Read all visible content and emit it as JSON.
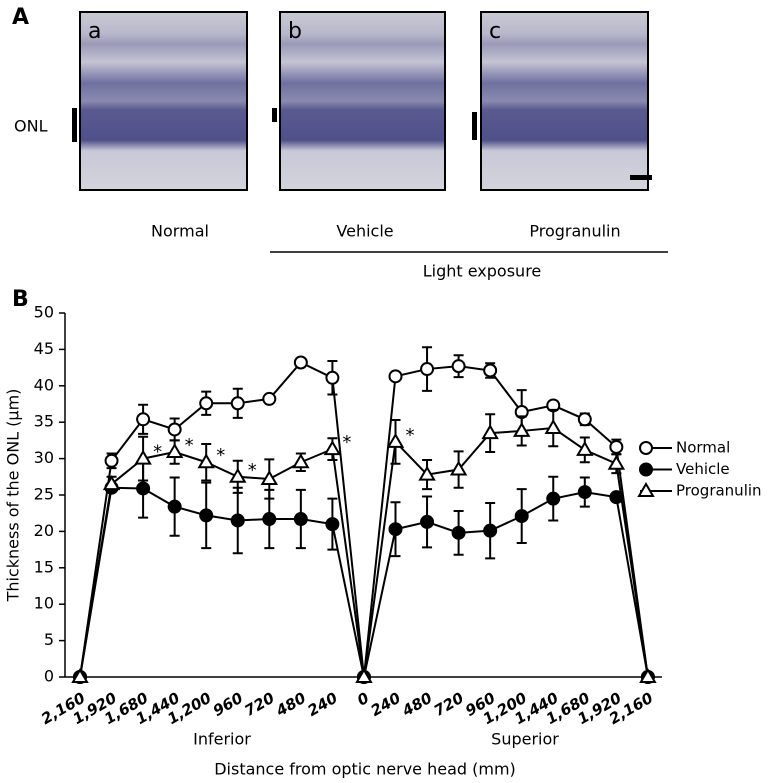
{
  "panel_a": {
    "label": "A",
    "images": [
      {
        "label": "a"
      },
      {
        "label": "b"
      },
      {
        "label": "c"
      }
    ],
    "layer_label": "ONL",
    "groups": [
      "Normal",
      "Vehicle",
      "Progranulin"
    ],
    "condition": "Light exposure"
  },
  "chart_data": {
    "type": "line",
    "panel_label": "B",
    "y_label": "Thickness of the ONL (µm)",
    "x_label": "Distance from optic nerve head (mm)",
    "regions": [
      "Inferior",
      "Superior"
    ],
    "categories": [
      "2,160",
      "1,920",
      "1,680",
      "1,440",
      "1,200",
      "960",
      "720",
      "480",
      "240",
      "0",
      "240",
      "480",
      "720",
      "960",
      "1,200",
      "1,440",
      "1,680",
      "1,920",
      "2,160"
    ],
    "ylim": [
      0,
      50
    ],
    "yticks": [
      0,
      5,
      10,
      15,
      20,
      25,
      30,
      35,
      40,
      45,
      50
    ],
    "series": [
      {
        "name": "Normal",
        "color": "#000000",
        "marker": "open-circle",
        "values": [
          0,
          29.7,
          35.4,
          34,
          37.6,
          37.6,
          38.2,
          43.2,
          41.1,
          0,
          41.3,
          42.3,
          42.7,
          42.1,
          36.4,
          37.3,
          35.4,
          31.6,
          0
        ],
        "errors": [
          0,
          1,
          2,
          1.5,
          1.6,
          2,
          0,
          0.5,
          2.3,
          0,
          0.5,
          3,
          1.5,
          1,
          3,
          0.5,
          0.8,
          1,
          0
        ]
      },
      {
        "name": "Vehicle",
        "color": "#000000",
        "marker": "filled-circle",
        "values": [
          0,
          26,
          25.9,
          23.4,
          22.2,
          21.5,
          21.7,
          21.7,
          21,
          0,
          20.3,
          21.3,
          19.8,
          20.1,
          22.1,
          24.5,
          25.4,
          24.7,
          0
        ],
        "errors": [
          0,
          0.5,
          4,
          4,
          4.5,
          4.5,
          4,
          4,
          3.5,
          0,
          3.7,
          3.5,
          3,
          3.8,
          3.7,
          3,
          2,
          0.5,
          0
        ]
      },
      {
        "name": "Progranulin",
        "color": "#000000",
        "marker": "open-triangle",
        "values": [
          0,
          26.5,
          30,
          30.9,
          29.5,
          27.5,
          27.2,
          29.5,
          31.3,
          0,
          32.3,
          27.8,
          28.5,
          33.5,
          33.8,
          34.2,
          31.2,
          29.3,
          0
        ],
        "errors": [
          0,
          1,
          3,
          1.6,
          2.5,
          2.2,
          2.7,
          1.2,
          1.5,
          0,
          3,
          2,
          2.5,
          2.6,
          2,
          2.5,
          1.7,
          1.3,
          0
        ]
      }
    ],
    "significance": [
      null,
      null,
      "*",
      "*",
      "*",
      "*",
      null,
      null,
      "*",
      null,
      "*",
      null,
      null,
      null,
      null,
      null,
      null,
      null,
      null
    ]
  }
}
